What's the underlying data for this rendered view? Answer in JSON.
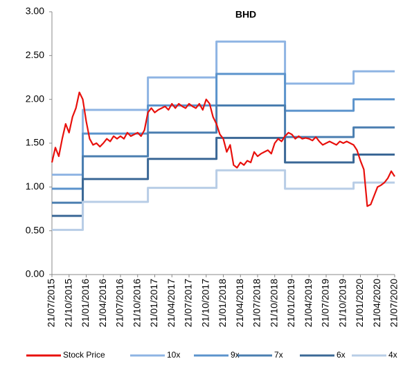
{
  "chart_data": {
    "type": "line",
    "title": "BHD",
    "step_series": [
      "10x",
      "9x",
      "7x",
      "6x",
      "4x"
    ],
    "categories": [
      "21/07/2015",
      null,
      null,
      null,
      null,
      "21/10/2015",
      null,
      null,
      null,
      null,
      "21/01/2016",
      null,
      null,
      null,
      null,
      "21/04/2016",
      null,
      null,
      null,
      null,
      "21/07/2016",
      null,
      null,
      null,
      null,
      "21/10/2016",
      null,
      null,
      null,
      null,
      "21/01/2017",
      null,
      null,
      null,
      null,
      "21/04/2017",
      null,
      null,
      null,
      null,
      "21/07/2017",
      null,
      null,
      null,
      null,
      "21/10/2017",
      null,
      null,
      null,
      null,
      "21/01/2018",
      null,
      null,
      null,
      null,
      "21/04/2018",
      null,
      null,
      null,
      null,
      "21/07/2018",
      null,
      null,
      null,
      null,
      "21/10/2018",
      null,
      null,
      null,
      null,
      "21/01/2019",
      null,
      null,
      null,
      null,
      "21/04/2019",
      null,
      null,
      null,
      null,
      "21/07/2019",
      null,
      null,
      null,
      null,
      "21/10/2019",
      null,
      null,
      null,
      null,
      "21/01/2020",
      null,
      null,
      null,
      null,
      "21/04/2020",
      null,
      null,
      null,
      null,
      "21/07/2020"
    ],
    "ylim": [
      0,
      3
    ],
    "yticks": [
      {
        "value": 0,
        "label": "0.00"
      },
      {
        "value": 0.5,
        "label": "0.50"
      },
      {
        "value": 1,
        "label": "1.00"
      },
      {
        "value": 1.5,
        "label": "1.50"
      },
      {
        "value": 2,
        "label": "2.00"
      },
      {
        "value": 2.5,
        "label": "2.50"
      },
      {
        "value": 3,
        "label": "3.00"
      }
    ],
    "grid": false,
    "legend": "bottom",
    "series": [
      {
        "name": "Stock Price",
        "color": "#e8100c",
        "values": [
          1.28,
          1.45,
          1.35,
          1.55,
          1.72,
          1.62,
          1.8,
          1.9,
          2.08,
          2.0,
          1.75,
          1.55,
          1.48,
          1.5,
          1.46,
          1.5,
          1.55,
          1.52,
          1.58,
          1.55,
          1.58,
          1.55,
          1.62,
          1.58,
          1.6,
          1.62,
          1.58,
          1.65,
          1.85,
          1.9,
          1.85,
          1.88,
          1.9,
          1.92,
          1.88,
          1.95,
          1.9,
          1.95,
          1.92,
          1.9,
          1.95,
          1.92,
          1.9,
          1.95,
          1.88,
          2.0,
          1.95,
          1.8,
          1.72,
          1.6,
          1.55,
          1.4,
          1.48,
          1.25,
          1.22,
          1.28,
          1.25,
          1.3,
          1.28,
          1.4,
          1.35,
          1.38,
          1.4,
          1.42,
          1.38,
          1.5,
          1.55,
          1.52,
          1.58,
          1.62,
          1.6,
          1.55,
          1.58,
          1.55,
          1.56,
          1.55,
          1.53,
          1.57,
          1.52,
          1.48,
          1.5,
          1.52,
          1.5,
          1.48,
          1.52,
          1.5,
          1.52,
          1.5,
          1.48,
          1.42,
          1.3,
          1.2,
          0.78,
          0.8,
          0.9,
          1.0,
          1.02,
          1.05,
          1.1,
          1.18,
          1.12
        ]
      },
      {
        "name": "10x",
        "color": "#8eb4e3",
        "values": [
          1.14,
          1.14,
          1.14,
          1.14,
          1.14,
          1.14,
          1.14,
          1.14,
          1.14,
          1.88,
          1.88,
          1.88,
          1.88,
          1.88,
          1.88,
          1.88,
          1.88,
          1.88,
          1.88,
          1.88,
          1.88,
          1.88,
          1.88,
          1.88,
          1.88,
          1.88,
          1.88,
          1.88,
          2.25,
          2.25,
          2.25,
          2.25,
          2.25,
          2.25,
          2.25,
          2.25,
          2.25,
          2.25,
          2.25,
          2.25,
          2.25,
          2.25,
          2.25,
          2.25,
          2.25,
          2.25,
          2.25,
          2.25,
          2.66,
          2.66,
          2.66,
          2.66,
          2.66,
          2.66,
          2.66,
          2.66,
          2.66,
          2.66,
          2.66,
          2.66,
          2.66,
          2.66,
          2.66,
          2.66,
          2.66,
          2.66,
          2.66,
          2.66,
          2.18,
          2.18,
          2.18,
          2.18,
          2.18,
          2.18,
          2.18,
          2.18,
          2.18,
          2.18,
          2.18,
          2.18,
          2.18,
          2.18,
          2.18,
          2.18,
          2.18,
          2.18,
          2.18,
          2.18,
          2.32,
          2.32,
          2.32,
          2.32,
          2.32,
          2.32,
          2.32,
          2.32,
          2.32,
          2.32,
          2.32,
          2.32,
          2.32
        ]
      },
      {
        "name": "9x",
        "color": "#5b93cc",
        "values": [
          0.98,
          0.98,
          0.98,
          0.98,
          0.98,
          0.98,
          0.98,
          0.98,
          0.98,
          1.61,
          1.61,
          1.61,
          1.61,
          1.61,
          1.61,
          1.61,
          1.61,
          1.61,
          1.61,
          1.61,
          1.61,
          1.61,
          1.61,
          1.61,
          1.61,
          1.61,
          1.61,
          1.61,
          1.93,
          1.93,
          1.93,
          1.93,
          1.93,
          1.93,
          1.93,
          1.93,
          1.93,
          1.93,
          1.93,
          1.93,
          1.93,
          1.93,
          1.93,
          1.93,
          1.93,
          1.93,
          1.93,
          1.93,
          2.29,
          2.29,
          2.29,
          2.29,
          2.29,
          2.29,
          2.29,
          2.29,
          2.29,
          2.29,
          2.29,
          2.29,
          2.29,
          2.29,
          2.29,
          2.29,
          2.29,
          2.29,
          2.29,
          2.29,
          1.87,
          1.87,
          1.87,
          1.87,
          1.87,
          1.87,
          1.87,
          1.87,
          1.87,
          1.87,
          1.87,
          1.87,
          1.87,
          1.87,
          1.87,
          1.87,
          1.87,
          1.87,
          1.87,
          1.87,
          2.0,
          2.0,
          2.0,
          2.0,
          2.0,
          2.0,
          2.0,
          2.0,
          2.0,
          2.0,
          2.0,
          2.0,
          2.0
        ]
      },
      {
        "name": "7x",
        "color": "#4a7eb0",
        "values": [
          0.82,
          0.82,
          0.82,
          0.82,
          0.82,
          0.82,
          0.82,
          0.82,
          0.82,
          1.35,
          1.35,
          1.35,
          1.35,
          1.35,
          1.35,
          1.35,
          1.35,
          1.35,
          1.35,
          1.35,
          1.35,
          1.35,
          1.35,
          1.35,
          1.35,
          1.35,
          1.35,
          1.35,
          1.62,
          1.62,
          1.62,
          1.62,
          1.62,
          1.62,
          1.62,
          1.62,
          1.62,
          1.62,
          1.62,
          1.62,
          1.62,
          1.62,
          1.62,
          1.62,
          1.62,
          1.62,
          1.62,
          1.62,
          1.93,
          1.93,
          1.93,
          1.93,
          1.93,
          1.93,
          1.93,
          1.93,
          1.93,
          1.93,
          1.93,
          1.93,
          1.93,
          1.93,
          1.93,
          1.93,
          1.93,
          1.93,
          1.93,
          1.93,
          1.57,
          1.57,
          1.57,
          1.57,
          1.57,
          1.57,
          1.57,
          1.57,
          1.57,
          1.57,
          1.57,
          1.57,
          1.57,
          1.57,
          1.57,
          1.57,
          1.57,
          1.57,
          1.57,
          1.57,
          1.68,
          1.68,
          1.68,
          1.68,
          1.68,
          1.68,
          1.68,
          1.68,
          1.68,
          1.68,
          1.68,
          1.68,
          1.68
        ]
      },
      {
        "name": "6x",
        "color": "#3b6896",
        "values": [
          0.67,
          0.67,
          0.67,
          0.67,
          0.67,
          0.67,
          0.67,
          0.67,
          0.67,
          1.09,
          1.09,
          1.09,
          1.09,
          1.09,
          1.09,
          1.09,
          1.09,
          1.09,
          1.09,
          1.09,
          1.09,
          1.09,
          1.09,
          1.09,
          1.09,
          1.09,
          1.09,
          1.09,
          1.32,
          1.32,
          1.32,
          1.32,
          1.32,
          1.32,
          1.32,
          1.32,
          1.32,
          1.32,
          1.32,
          1.32,
          1.32,
          1.32,
          1.32,
          1.32,
          1.32,
          1.32,
          1.32,
          1.32,
          1.56,
          1.56,
          1.56,
          1.56,
          1.56,
          1.56,
          1.56,
          1.56,
          1.56,
          1.56,
          1.56,
          1.56,
          1.56,
          1.56,
          1.56,
          1.56,
          1.56,
          1.56,
          1.56,
          1.56,
          1.28,
          1.28,
          1.28,
          1.28,
          1.28,
          1.28,
          1.28,
          1.28,
          1.28,
          1.28,
          1.28,
          1.28,
          1.28,
          1.28,
          1.28,
          1.28,
          1.28,
          1.28,
          1.28,
          1.28,
          1.37,
          1.37,
          1.37,
          1.37,
          1.37,
          1.37,
          1.37,
          1.37,
          1.37,
          1.37,
          1.37,
          1.37,
          1.37
        ]
      },
      {
        "name": "4x",
        "color": "#b8cde6",
        "values": [
          0.51,
          0.51,
          0.51,
          0.51,
          0.51,
          0.51,
          0.51,
          0.51,
          0.51,
          0.83,
          0.83,
          0.83,
          0.83,
          0.83,
          0.83,
          0.83,
          0.83,
          0.83,
          0.83,
          0.83,
          0.83,
          0.83,
          0.83,
          0.83,
          0.83,
          0.83,
          0.83,
          0.83,
          0.99,
          0.99,
          0.99,
          0.99,
          0.99,
          0.99,
          0.99,
          0.99,
          0.99,
          0.99,
          0.99,
          0.99,
          0.99,
          0.99,
          0.99,
          0.99,
          0.99,
          0.99,
          0.99,
          0.99,
          1.19,
          1.19,
          1.19,
          1.19,
          1.19,
          1.19,
          1.19,
          1.19,
          1.19,
          1.19,
          1.19,
          1.19,
          1.19,
          1.19,
          1.19,
          1.19,
          1.19,
          1.19,
          1.19,
          1.19,
          0.98,
          0.98,
          0.98,
          0.98,
          0.98,
          0.98,
          0.98,
          0.98,
          0.98,
          0.98,
          0.98,
          0.98,
          0.98,
          0.98,
          0.98,
          0.98,
          0.98,
          0.98,
          0.98,
          0.98,
          1.05,
          1.05,
          1.05,
          1.05,
          1.05,
          1.05,
          1.05,
          1.05,
          1.05,
          1.05,
          1.05,
          1.05,
          1.05
        ]
      }
    ]
  }
}
